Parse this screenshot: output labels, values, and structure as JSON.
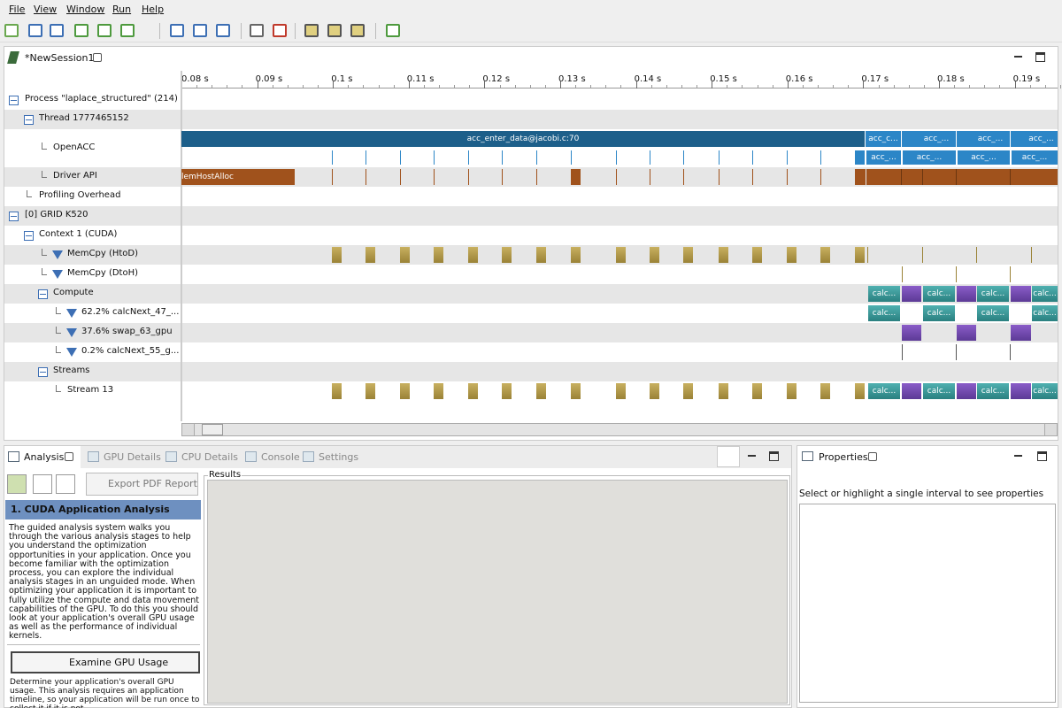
{
  "menu": [
    "File",
    "View",
    "Window",
    "Run",
    "Help"
  ],
  "session_tab": "*NewSession1",
  "ruler_labels": [
    "0.08 s",
    "0.09 s",
    "0.1 s",
    "0.11 s",
    "0.12 s",
    "0.13 s",
    "0.14 s",
    "0.15 s",
    "0.16 s",
    "0.17 s",
    "0.18 s",
    "0.19 s"
  ],
  "tree_rows": [
    "Process \"laplace_structured\" (214)",
    "Thread 1777465152",
    "OpenACC",
    "Driver API",
    "Profiling Overhead",
    "[0] GRID K520",
    "Context 1 (CUDA)",
    "MemCpy (HtoD)",
    "MemCpy (DtoH)",
    "Compute",
    "62.2% calcNext_47_...",
    "37.6% swap_63_gpu",
    "0.2% calcNext_55_g...",
    "Streams",
    "Stream 13"
  ],
  "timeline": {
    "openacc_top": [
      "acc_enter_data@jacobi.c:70",
      "acc_c...",
      "acc_...",
      "acc_...",
      "acc_..."
    ],
    "openacc_bottom": [
      "acc_...",
      "acc_...",
      "acc_...",
      "acc_..."
    ],
    "driver_api": [
      "lemHostAlloc"
    ],
    "compute": [
      "calc...",
      "calc...",
      "calc...",
      "calc..."
    ],
    "kernel_calcnext47": [
      "calc...",
      "calc...",
      "calc...",
      "calc..."
    ],
    "stream13": [
      "calc...",
      "calc...",
      "calc...",
      "calc..."
    ]
  },
  "bottom_tabs": [
    "Analysis",
    "GPU Details",
    "CPU Details",
    "Console",
    "Settings"
  ],
  "analysis": {
    "export_button": "Export PDF Report",
    "section_title": "1. CUDA Application Analysis",
    "description": "The guided analysis system walks you through the various analysis stages to help you understand the optimization opportunities in your application. Once you become familiar with the optimization process, you can explore the individual analysis stages in an unguided mode. When optimizing your application it is important to fully utilize the compute and data movement capabilities of the GPU. To do this you should look at your application's overall GPU usage as well as the performance of individual kernels.",
    "examine_button": "Examine GPU Usage",
    "examine_description": "Determine your application's overall GPU usage. This analysis requires an application timeline, so your application will be run once to collect it if it is not"
  },
  "results_label": "Results",
  "properties": {
    "tab": "Properties",
    "hint": "Select or highlight a single interval to see properties"
  }
}
